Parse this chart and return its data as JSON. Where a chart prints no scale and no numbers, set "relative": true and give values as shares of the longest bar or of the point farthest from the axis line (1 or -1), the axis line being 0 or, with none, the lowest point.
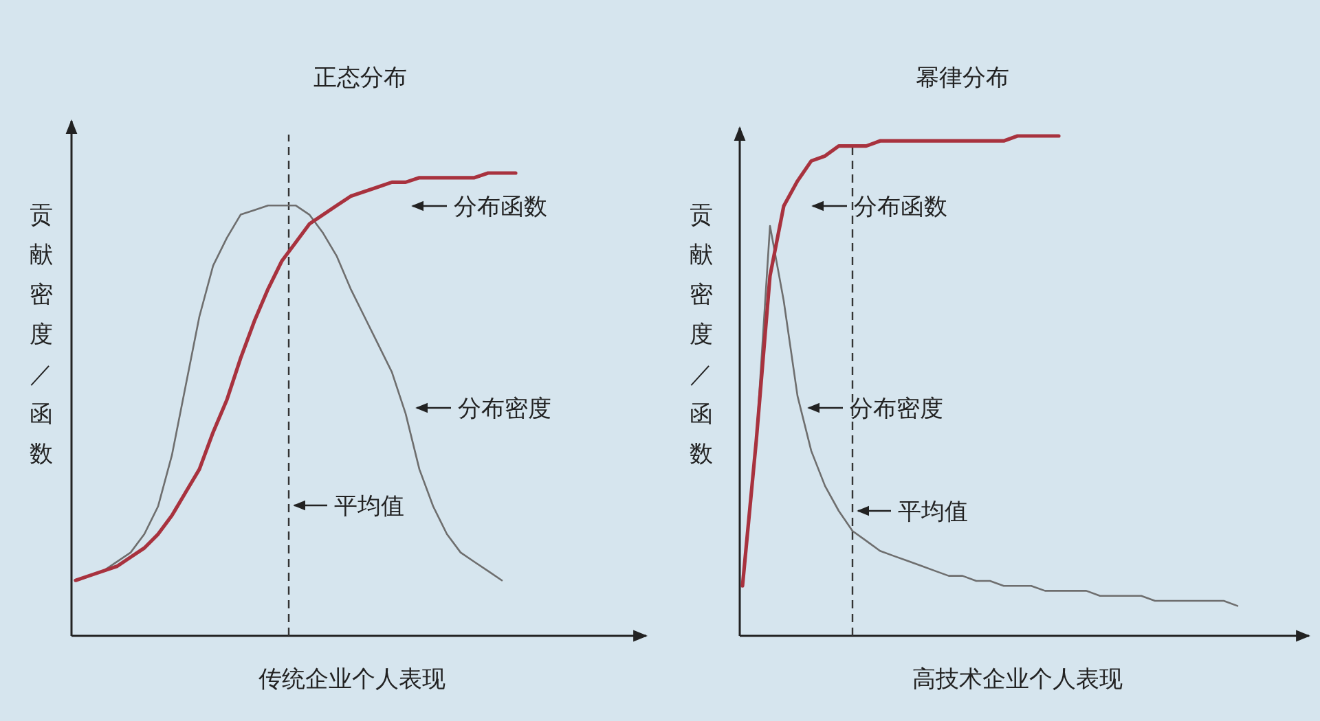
{
  "chart_data": [
    {
      "type": "line",
      "title": "正态分布",
      "xlabel": "传统企业个人表现",
      "ylabel": "贡献密度／函数",
      "relative": true,
      "legend": false,
      "categories": [
        null,
        null,
        null,
        null,
        null,
        null,
        null,
        null,
        null,
        null,
        null,
        null,
        null,
        null,
        null,
        null,
        null,
        null,
        null,
        null,
        null,
        null,
        null,
        null,
        null,
        null,
        null,
        null,
        null,
        null,
        null,
        null,
        null
      ],
      "series": [
        {
          "name": "分布密度",
          "color": "#6e6e6e",
          "values": [
            0.12,
            0.13,
            0.14,
            0.16,
            0.18,
            0.22,
            0.28,
            0.39,
            0.54,
            0.69,
            0.8,
            0.86,
            0.91,
            0.92,
            0.93,
            0.93,
            0.93,
            0.91,
            0.87,
            0.82,
            0.75,
            0.69,
            0.63,
            0.57,
            0.48,
            0.36,
            0.28,
            0.22,
            0.18,
            0.16,
            0.14,
            0.12,
            null
          ]
        },
        {
          "name": "分布函数",
          "color": "#a8323e",
          "values": [
            0.12,
            0.13,
            0.14,
            0.15,
            0.17,
            0.19,
            0.22,
            0.26,
            0.31,
            0.36,
            0.44,
            0.51,
            0.6,
            0.68,
            0.75,
            0.81,
            0.85,
            0.89,
            0.91,
            0.93,
            0.95,
            0.96,
            0.97,
            0.98,
            0.98,
            0.99,
            0.99,
            0.99,
            0.99,
            0.99,
            1,
            1,
            1
          ]
        }
      ],
      "annotations": [
        "平均值"
      ]
    },
    {
      "type": "line",
      "title": "幂律分布",
      "xlabel": "高技术企业个人表现",
      "ylabel": "贡献密度／函数",
      "relative": true,
      "legend": false,
      "categories": [
        null,
        null,
        null,
        null,
        null,
        null,
        null,
        null,
        null,
        null,
        null,
        null,
        null,
        null,
        null,
        null,
        null,
        null,
        null,
        null,
        null,
        null,
        null,
        null,
        null,
        null,
        null,
        null,
        null,
        null,
        null,
        null,
        null,
        null,
        null,
        null,
        null
      ],
      "series": [
        {
          "name": "分布密度",
          "color": "#6e6e6e",
          "values": [
            null,
            0.39,
            0.82,
            0.67,
            0.48,
            0.37,
            0.3,
            0.25,
            0.21,
            0.19,
            0.17,
            0.16,
            0.15,
            0.14,
            0.13,
            0.12,
            0.12,
            0.11,
            0.11,
            0.1,
            0.1,
            0.1,
            0.09,
            0.09,
            0.09,
            0.09,
            0.08,
            0.08,
            0.08,
            0.08,
            0.07,
            0.07,
            0.07,
            0.07,
            0.07,
            0.07,
            0.06
          ]
        },
        {
          "name": "分布函数",
          "color": "#a8323e",
          "values": [
            0.1,
            0.39,
            0.72,
            0.86,
            0.91,
            0.95,
            0.96,
            0.98,
            0.98,
            0.98,
            0.99,
            0.99,
            0.99,
            0.99,
            0.99,
            0.99,
            0.99,
            0.99,
            0.99,
            0.99,
            1,
            1,
            1,
            1,
            null,
            null,
            null,
            null,
            null,
            null,
            null,
            null,
            null,
            null,
            null,
            null,
            null
          ]
        }
      ],
      "annotations": [
        "平均值"
      ]
    }
  ]
}
